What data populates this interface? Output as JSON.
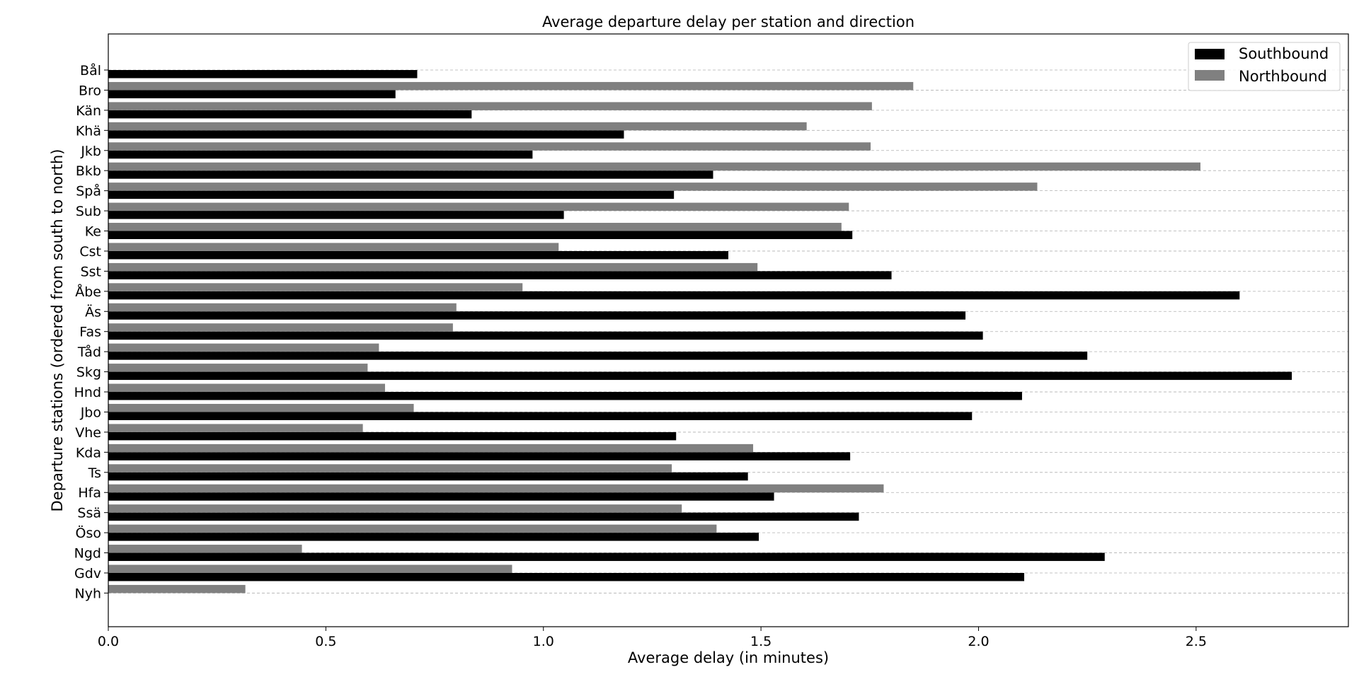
{
  "chart_data": {
    "type": "bar",
    "orientation": "horizontal",
    "title": "Average departure delay per station and direction",
    "xlabel": "Average delay (in minutes)",
    "ylabel": "Departure stations (ordered from south to north)",
    "xlim": [
      0,
      2.85
    ],
    "xticks": [
      "0.0",
      "0.5",
      "1.0",
      "1.5",
      "2.0",
      "2.5"
    ],
    "grid": "horizontal dashed",
    "legend_position": "top-right",
    "categories": [
      "Bål",
      "Bro",
      "Kän",
      "Khä",
      "Jkb",
      "Bkb",
      "Spå",
      "Sub",
      "Ke",
      "Cst",
      "Sst",
      "Åbe",
      "Äs",
      "Fas",
      "Tåd",
      "Skg",
      "Hnd",
      "Jbo",
      "Vhe",
      "Kda",
      "Ts",
      "Hfa",
      "Ssä",
      "Öso",
      "Ngd",
      "Gdv",
      "Nyh"
    ],
    "series": [
      {
        "name": "Southbound",
        "color": "#000000",
        "values": [
          0.71,
          0.66,
          0.835,
          1.185,
          0.975,
          1.39,
          1.3,
          1.047,
          1.71,
          1.425,
          1.8,
          2.6,
          1.97,
          2.01,
          2.25,
          2.72,
          2.1,
          1.985,
          1.305,
          1.705,
          1.47,
          1.53,
          1.725,
          1.495,
          2.29,
          2.105,
          null
        ]
      },
      {
        "name": "Northbound",
        "color": "#808080",
        "values": [
          null,
          1.85,
          1.755,
          1.605,
          1.752,
          2.51,
          2.135,
          1.702,
          1.685,
          1.035,
          1.492,
          0.952,
          0.8,
          0.792,
          0.622,
          0.596,
          0.636,
          0.702,
          0.585,
          1.482,
          1.295,
          1.782,
          1.318,
          1.398,
          0.445,
          0.928,
          0.315
        ]
      }
    ]
  }
}
